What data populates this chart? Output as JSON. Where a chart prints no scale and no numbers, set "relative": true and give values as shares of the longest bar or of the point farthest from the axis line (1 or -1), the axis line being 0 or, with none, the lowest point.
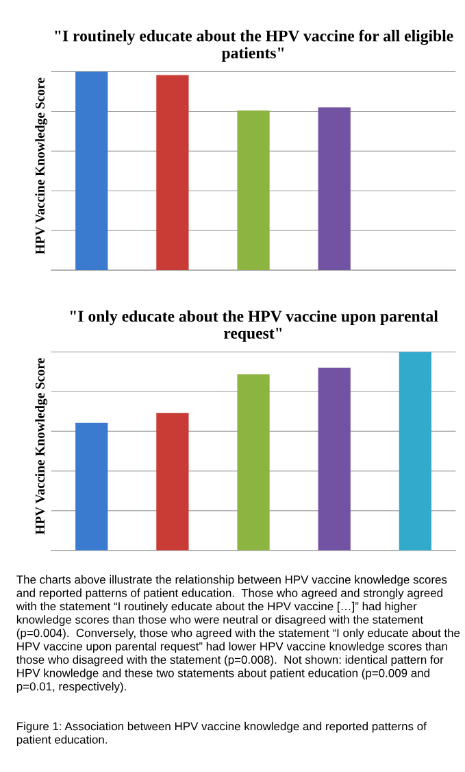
{
  "chart_data": [
    {
      "type": "bar",
      "title": "\"I routinely educate about the HPV vaccine for all eligible patients\"",
      "ylabel": "HPV Vaccine Knowledge Score",
      "categories": [
        null,
        null,
        null,
        null,
        null
      ],
      "relative": true,
      "grid": "y",
      "tick_labels": false,
      "values": [
        1,
        0.983,
        0.804,
        0.821,
        null
      ],
      "colors": [
        "#3a7bd0",
        "#c93b35",
        "#8bb540",
        "#7253a3",
        "#31aacb"
      ]
    },
    {
      "type": "bar",
      "title": "\"I only educate about the HPV vaccine upon parental request\"",
      "ylabel": "HPV Vaccine Knowledge Score",
      "categories": [
        null,
        null,
        null,
        null,
        null
      ],
      "relative": true,
      "grid": "y",
      "tick_labels": false,
      "values": [
        0.643,
        0.693,
        0.887,
        0.92,
        1
      ],
      "colors": [
        "#3a7bd0",
        "#c93b35",
        "#8bb540",
        "#7253a3",
        "#31aacb"
      ],
      "annotations": [
        "The charts above illustrate the relationship between HPV vaccine knowledge scores and reported patterns of patient education.  Those who agreed and strongly agreed with the statement “I routinely educate about the HPV vaccine […]” had higher knowledge scores than those who were neutral or disagreed with the statement (p=0.004).  Conversely, those who agreed with the statement “I only educate about the HPV vaccine upon parental request” had lower HPV vaccine knowledge scores than those who disagreed with the statement (p=0.008).  Not shown: identical pattern for HPV knowledge and these two statements about patient education (p=0.009 and p=0.01, respectively).",
        "Figure 1: Association between HPV vaccine knowledge and reported patterns of patient education."
      ]
    }
  ]
}
